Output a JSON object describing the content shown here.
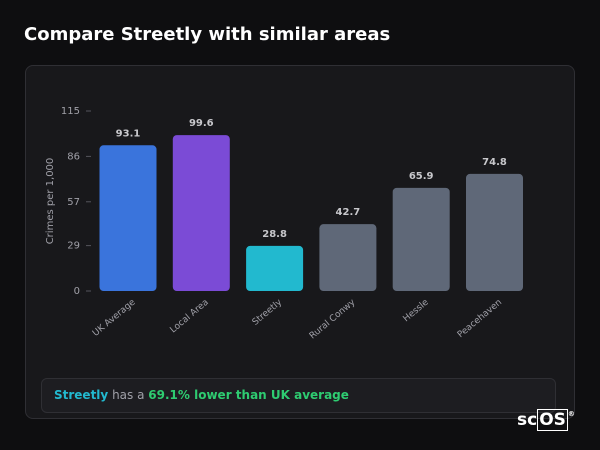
{
  "header": {
    "title": "Compare Streetly with similar areas"
  },
  "chart_data": {
    "type": "bar",
    "y_label": "Crimes per 1,000",
    "categories": [
      "UK Average",
      "Local Area",
      "Streetly",
      "Rural Conwy",
      "Hessle",
      "Peacehaven"
    ],
    "values": [
      93.1,
      99.6,
      28.8,
      42.7,
      65.9,
      74.8
    ],
    "colors": [
      "#3a74dc",
      "#7b4bd6",
      "#22b9cf",
      "#5f6878",
      "#5f6878",
      "#5f6878"
    ],
    "ylim": [
      0,
      115
    ],
    "yticks": [
      0,
      29,
      57,
      86,
      115
    ],
    "grid": false
  },
  "footer": {
    "area": "Streetly",
    "connector": "has a",
    "highlight": "69.1% lower than UK average"
  },
  "logo": {
    "left": "sc",
    "right": "OS",
    "mark": "®"
  }
}
